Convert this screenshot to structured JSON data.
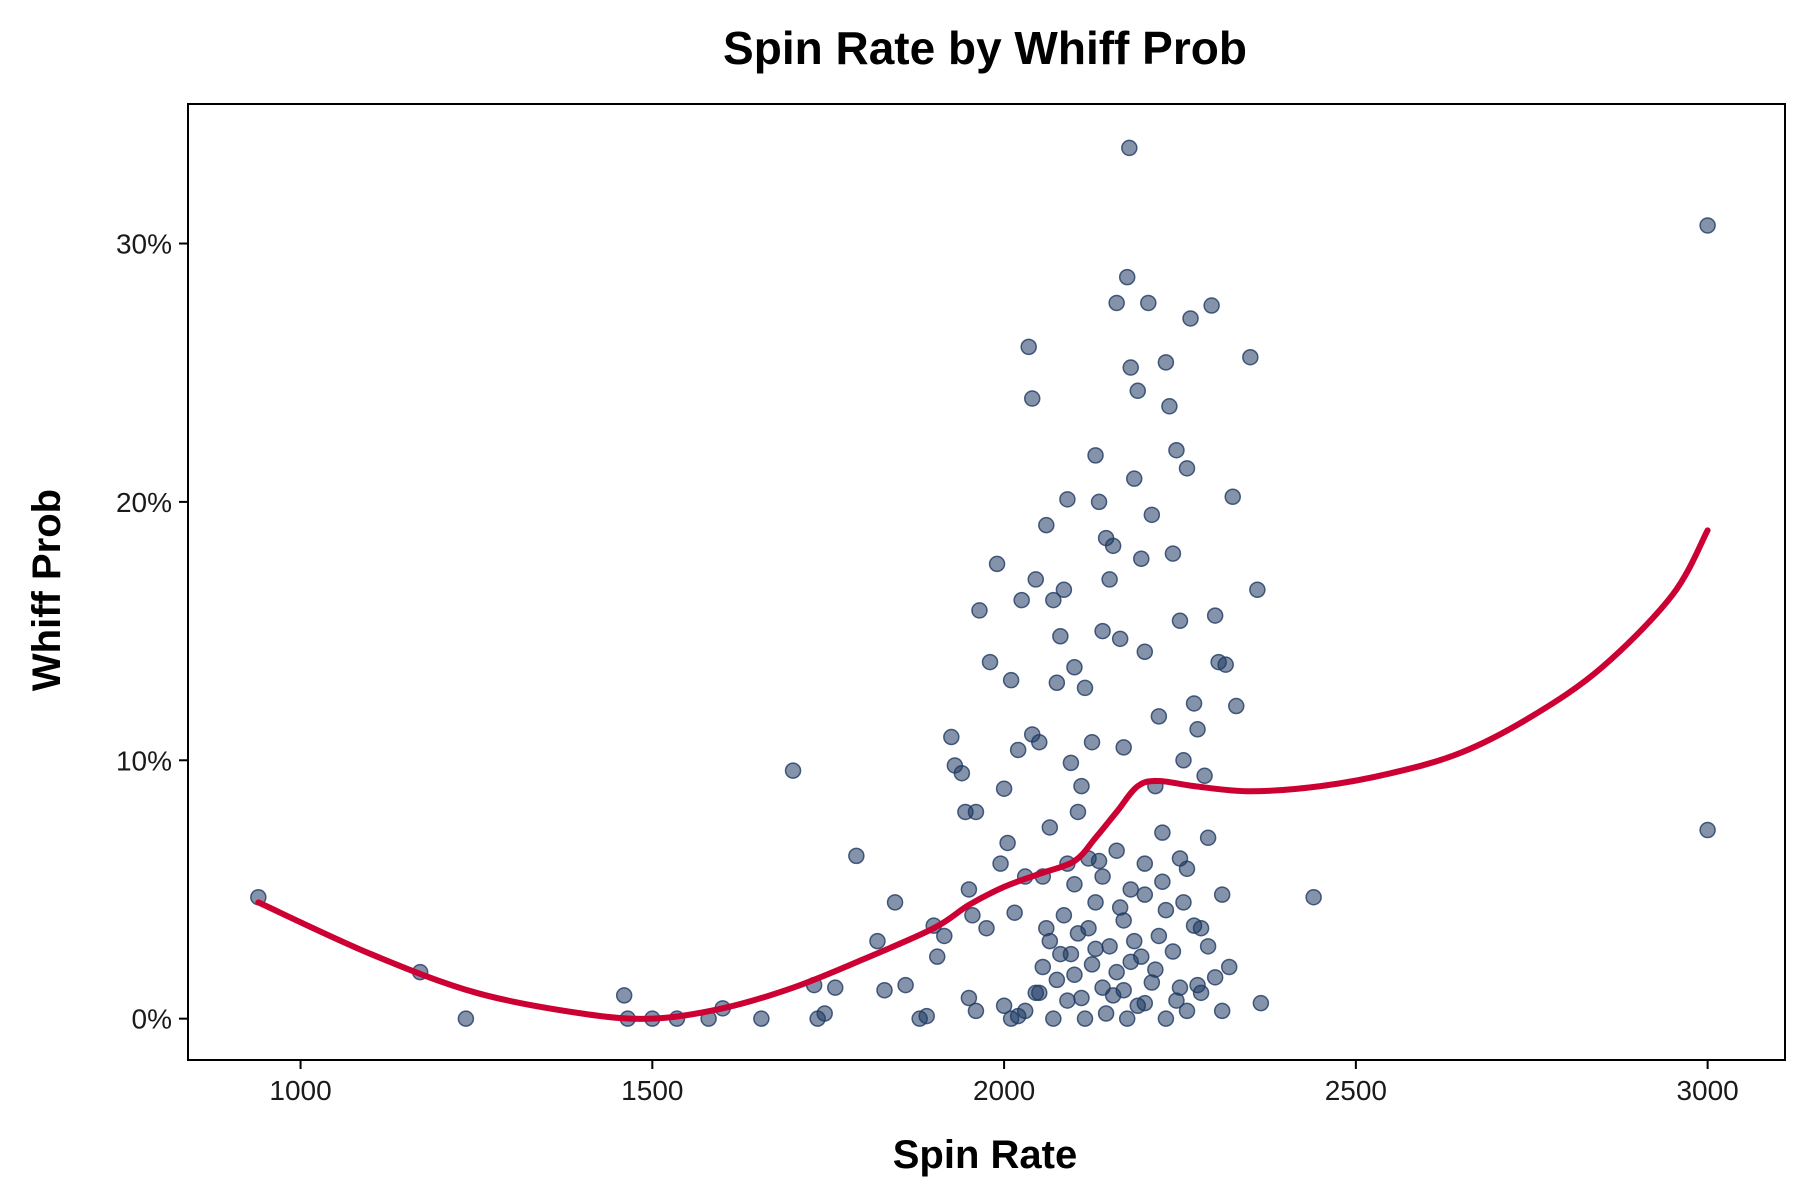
{
  "chart_data": {
    "type": "scatter",
    "title": "Spin Rate by Whiff Prob",
    "xlabel": "Spin Rate",
    "ylabel": "Whiff Prob",
    "xlim": [
      840,
      3110
    ],
    "ylim": [
      -0.016,
      0.354
    ],
    "x_ticks": [
      1000,
      1500,
      2000,
      2500,
      3000
    ],
    "x_tick_labels": [
      "1000",
      "1500",
      "2000",
      "2500",
      "3000"
    ],
    "y_ticks": [
      0,
      0.1,
      0.2,
      0.3
    ],
    "y_tick_labels": [
      "0%",
      "10%",
      "20%",
      "30%"
    ],
    "grid": false,
    "colors": {
      "points": "#1f3a63",
      "trend": "#cc0033"
    },
    "series": [
      {
        "kind": "points",
        "points": [
          [
            940,
            0.047
          ],
          [
            1170,
            0.018
          ],
          [
            1235,
            0.0
          ],
          [
            1460,
            0.009
          ],
          [
            1465,
            0.0
          ],
          [
            1500,
            0.0
          ],
          [
            1535,
            0.0
          ],
          [
            1580,
            0.0
          ],
          [
            1600,
            0.004
          ],
          [
            1655,
            0.0
          ],
          [
            1700,
            0.096
          ],
          [
            1730,
            0.013
          ],
          [
            1735,
            0.0
          ],
          [
            1745,
            0.002
          ],
          [
            1760,
            0.012
          ],
          [
            1790,
            0.063
          ],
          [
            1820,
            0.03
          ],
          [
            1830,
            0.011
          ],
          [
            1845,
            0.045
          ],
          [
            1860,
            0.013
          ],
          [
            1880,
            0.0
          ],
          [
            1890,
            0.001
          ],
          [
            1900,
            0.036
          ],
          [
            1905,
            0.024
          ],
          [
            1915,
            0.032
          ],
          [
            1925,
            0.109
          ],
          [
            1930,
            0.098
          ],
          [
            1940,
            0.095
          ],
          [
            1945,
            0.08
          ],
          [
            1950,
            0.05
          ],
          [
            1955,
            0.04
          ],
          [
            1960,
            0.08
          ],
          [
            1965,
            0.158
          ],
          [
            1975,
            0.035
          ],
          [
            1980,
            0.138
          ],
          [
            1990,
            0.176
          ],
          [
            1995,
            0.06
          ],
          [
            2000,
            0.089
          ],
          [
            2005,
            0.068
          ],
          [
            2010,
            0.131
          ],
          [
            2015,
            0.041
          ],
          [
            2020,
            0.104
          ],
          [
            2025,
            0.162
          ],
          [
            2030,
            0.055
          ],
          [
            2035,
            0.26
          ],
          [
            2040,
            0.24
          ],
          [
            2040,
            0.11
          ],
          [
            2045,
            0.17
          ],
          [
            2050,
            0.107
          ],
          [
            2055,
            0.055
          ],
          [
            2060,
            0.191
          ],
          [
            2065,
            0.074
          ],
          [
            2070,
            0.162
          ],
          [
            2075,
            0.13
          ],
          [
            2080,
            0.148
          ],
          [
            2085,
            0.166
          ],
          [
            2090,
            0.201
          ],
          [
            2095,
            0.099
          ],
          [
            2100,
            0.136
          ],
          [
            2105,
            0.08
          ],
          [
            2110,
            0.09
          ],
          [
            2115,
            0.128
          ],
          [
            2120,
            0.062
          ],
          [
            2125,
            0.107
          ],
          [
            2130,
            0.218
          ],
          [
            2135,
            0.2
          ],
          [
            2140,
            0.15
          ],
          [
            2145,
            0.186
          ],
          [
            2150,
            0.17
          ],
          [
            2155,
            0.183
          ],
          [
            2160,
            0.277
          ],
          [
            2165,
            0.147
          ],
          [
            2170,
            0.105
          ],
          [
            2175,
            0.287
          ],
          [
            2178,
            0.337
          ],
          [
            2180,
            0.252
          ],
          [
            2185,
            0.209
          ],
          [
            2190,
            0.243
          ],
          [
            2195,
            0.178
          ],
          [
            2200,
            0.142
          ],
          [
            2205,
            0.277
          ],
          [
            2210,
            0.195
          ],
          [
            2215,
            0.09
          ],
          [
            2220,
            0.117
          ],
          [
            2225,
            0.072
          ],
          [
            2230,
            0.254
          ],
          [
            2235,
            0.237
          ],
          [
            2240,
            0.18
          ],
          [
            2245,
            0.22
          ],
          [
            2250,
            0.154
          ],
          [
            2255,
            0.1
          ],
          [
            2260,
            0.213
          ],
          [
            2265,
            0.271
          ],
          [
            2270,
            0.122
          ],
          [
            2275,
            0.112
          ],
          [
            2280,
            0.035
          ],
          [
            2285,
            0.094
          ],
          [
            2290,
            0.07
          ],
          [
            2295,
            0.276
          ],
          [
            2300,
            0.156
          ],
          [
            2305,
            0.138
          ],
          [
            2310,
            0.048
          ],
          [
            2315,
            0.137
          ],
          [
            2320,
            0.02
          ],
          [
            2325,
            0.202
          ],
          [
            2330,
            0.121
          ],
          [
            2350,
            0.256
          ],
          [
            2360,
            0.166
          ],
          [
            2365,
            0.006
          ],
          [
            2440,
            0.047
          ],
          [
            3000,
            0.307
          ],
          [
            3000,
            0.073
          ],
          [
            2020,
            0.001
          ],
          [
            2030,
            0.003
          ],
          [
            2045,
            0.01
          ],
          [
            2055,
            0.02
          ],
          [
            2065,
            0.03
          ],
          [
            2075,
            0.015
          ],
          [
            2085,
            0.04
          ],
          [
            2095,
            0.025
          ],
          [
            2110,
            0.008
          ],
          [
            2120,
            0.035
          ],
          [
            2130,
            0.045
          ],
          [
            2140,
            0.012
          ],
          [
            2150,
            0.028
          ],
          [
            2160,
            0.018
          ],
          [
            2170,
            0.038
          ],
          [
            2180,
            0.022
          ],
          [
            2190,
            0.005
          ],
          [
            2200,
            0.048
          ],
          [
            2210,
            0.014
          ],
          [
            2220,
            0.032
          ],
          [
            2230,
            0.042
          ],
          [
            2240,
            0.026
          ],
          [
            2250,
            0.012
          ],
          [
            2260,
            0.058
          ],
          [
            2270,
            0.036
          ],
          [
            2280,
            0.01
          ],
          [
            2290,
            0.028
          ],
          [
            2300,
            0.016
          ],
          [
            2310,
            0.003
          ],
          [
            2250,
            0.062
          ],
          [
            2140,
            0.055
          ],
          [
            2160,
            0.065
          ],
          [
            2180,
            0.05
          ],
          [
            2200,
            0.06
          ],
          [
            2100,
            0.052
          ],
          [
            2090,
            0.06
          ],
          [
            2060,
            0.035
          ],
          [
            2050,
            0.01
          ],
          [
            2000,
            0.005
          ],
          [
            2010,
            0.0
          ],
          [
            1950,
            0.008
          ],
          [
            1960,
            0.003
          ],
          [
            2070,
            0.0
          ],
          [
            2115,
            0.0
          ],
          [
            2145,
            0.002
          ],
          [
            2175,
            0.0
          ],
          [
            2230,
            0.0
          ],
          [
            2260,
            0.003
          ],
          [
            2125,
            0.021
          ],
          [
            2155,
            0.009
          ],
          [
            2185,
            0.03
          ],
          [
            2215,
            0.019
          ],
          [
            2245,
            0.007
          ],
          [
            2275,
            0.013
          ],
          [
            2105,
            0.033
          ],
          [
            2135,
            0.061
          ],
          [
            2165,
            0.043
          ],
          [
            2195,
            0.024
          ],
          [
            2225,
            0.053
          ],
          [
            2255,
            0.045
          ],
          [
            2080,
            0.025
          ],
          [
            2090,
            0.007
          ],
          [
            2100,
            0.017
          ],
          [
            2130,
            0.027
          ],
          [
            2170,
            0.011
          ],
          [
            2200,
            0.006
          ]
        ]
      },
      {
        "kind": "trend",
        "points": [
          [
            940,
            0.045
          ],
          [
            1100,
            0.025
          ],
          [
            1250,
            0.01
          ],
          [
            1400,
            0.002
          ],
          [
            1500,
            0.0
          ],
          [
            1600,
            0.004
          ],
          [
            1700,
            0.012
          ],
          [
            1800,
            0.023
          ],
          [
            1900,
            0.035
          ],
          [
            1950,
            0.044
          ],
          [
            2000,
            0.051
          ],
          [
            2050,
            0.056
          ],
          [
            2100,
            0.061
          ],
          [
            2130,
            0.07
          ],
          [
            2160,
            0.08
          ],
          [
            2190,
            0.09
          ],
          [
            2220,
            0.092
          ],
          [
            2270,
            0.09
          ],
          [
            2350,
            0.088
          ],
          [
            2450,
            0.09
          ],
          [
            2550,
            0.095
          ],
          [
            2650,
            0.103
          ],
          [
            2750,
            0.117
          ],
          [
            2850,
            0.136
          ],
          [
            2950,
            0.164
          ],
          [
            3000,
            0.189
          ]
        ]
      }
    ]
  }
}
